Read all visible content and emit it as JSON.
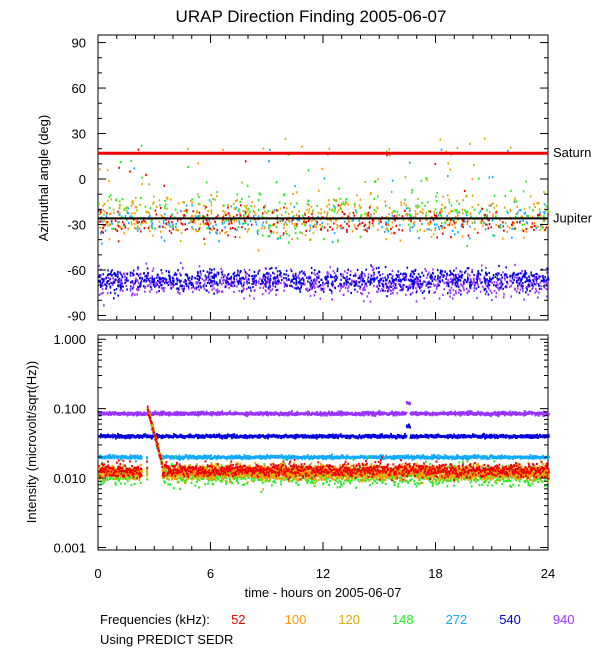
{
  "chart_data": {
    "type": "scatter",
    "title": "URAP Direction Finding  2005-06-07",
    "xlabel": "time - hours on 2005-06-07",
    "xlim": [
      0,
      24
    ],
    "xticks": [
      0,
      6,
      12,
      18,
      24
    ],
    "panels": [
      {
        "ylabel": "Azimuthal angle (deg)",
        "ylim": [
          -93,
          95
        ],
        "yticks": [
          90,
          60,
          30,
          0,
          -30,
          -60,
          -90
        ],
        "reference_lines": [
          {
            "name": "Saturn",
            "value": 17,
            "color": "#ee0000"
          },
          {
            "name": "Jupiter",
            "value": -26,
            "color": "#000000"
          }
        ],
        "series": [
          {
            "freq": "940",
            "typical_center": -68,
            "spread": 7
          },
          {
            "freq": "540",
            "typical_center": -66,
            "spread": 6
          },
          {
            "freq": "272",
            "typical_center": -28,
            "spread": 9
          },
          {
            "freq": "148",
            "typical_center": -22,
            "spread": 14
          },
          {
            "freq": "120",
            "typical_center": -22,
            "spread": 12
          },
          {
            "freq": "100",
            "typical_center": -26,
            "spread": 10
          },
          {
            "freq": "52",
            "typical_center": -28,
            "spread": 8
          }
        ]
      },
      {
        "ylabel": "Intensity (microvolt/sqrt(Hz))",
        "scale": "log",
        "ylim": [
          0.001,
          1.0
        ],
        "ytick_labels": [
          "1.000",
          "0.100",
          "0.010",
          "0.001"
        ],
        "yticks": [
          1.0,
          0.1,
          0.01,
          0.001
        ],
        "series": [
          {
            "freq": "940",
            "typical_level": 0.085
          },
          {
            "freq": "540",
            "typical_level": 0.04
          },
          {
            "freq": "272",
            "typical_level": 0.02
          },
          {
            "freq": "148",
            "typical_level": 0.011
          },
          {
            "freq": "120",
            "typical_level": 0.012
          },
          {
            "freq": "100",
            "typical_level": 0.012
          },
          {
            "freq": "52",
            "typical_level": 0.013
          }
        ],
        "events": [
          {
            "hour": 2.6,
            "note": "burst decaying from 0.1 to 0.015 by hour 3.3"
          },
          {
            "hour": 16.5,
            "note": "spike up to ~0.14"
          }
        ]
      }
    ]
  },
  "legend": {
    "label": "Frequencies (kHz):",
    "items": [
      {
        "label": "52",
        "color": "#ee0000"
      },
      {
        "label": "100",
        "color": "#ff9900"
      },
      {
        "label": "120",
        "color": "#ddaa00"
      },
      {
        "label": "148",
        "color": "#22ee22"
      },
      {
        "label": "272",
        "color": "#11aaff"
      },
      {
        "label": "540",
        "color": "#0000dd"
      },
      {
        "label": "940",
        "color": "#9933ff"
      }
    ]
  },
  "footer": "Using PREDICT SEDR"
}
